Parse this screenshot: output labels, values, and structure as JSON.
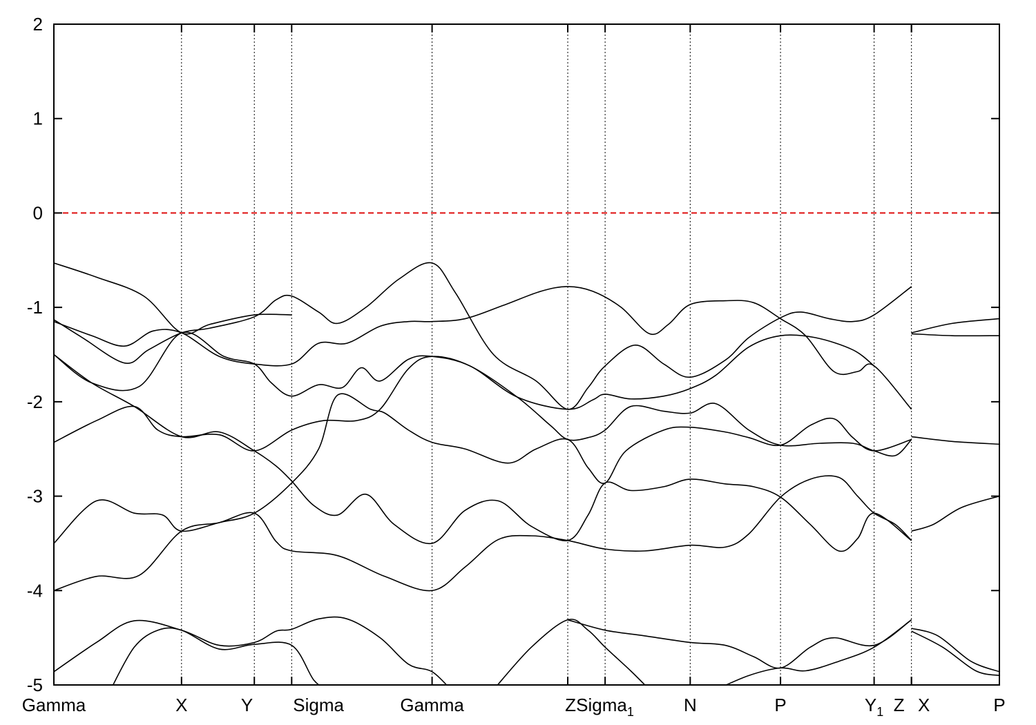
{
  "chart_data": {
    "type": "line",
    "title": "",
    "xlabel": "",
    "ylabel": "",
    "ylim": [
      -5,
      2
    ],
    "yticks": [
      2,
      1,
      0,
      -1,
      -2,
      -3,
      -4,
      -5
    ],
    "ytick_labels": [
      "2",
      "1",
      "0",
      "-1",
      "-2",
      "-3",
      "-4",
      "-5"
    ],
    "x_range": [
      0,
      20
    ],
    "high_symmetry_points": [
      {
        "x": 0.0,
        "label": "Gamma",
        "sub": ""
      },
      {
        "x": 2.7,
        "label": "X",
        "sub": ""
      },
      {
        "x": 4.24,
        "label": "Y",
        "sub": ""
      },
      {
        "x": 5.03,
        "label": "Sigma",
        "sub": ""
      },
      {
        "x": 8.0,
        "label": "Gamma",
        "sub": ""
      },
      {
        "x": 10.87,
        "label": "Z",
        "sub": ""
      },
      {
        "x": 11.66,
        "label": "Sigma",
        "sub": "1"
      },
      {
        "x": 13.46,
        "label": "N",
        "sub": ""
      },
      {
        "x": 15.37,
        "label": "P",
        "sub": ""
      },
      {
        "x": 17.35,
        "label": "Y",
        "sub": "1"
      },
      {
        "x": 18.14,
        "label": "Z",
        "sub": ""
      },
      {
        "x": 18.14,
        "label": "X",
        "sub": ""
      },
      {
        "x": 20.0,
        "label": "P",
        "sub": ""
      }
    ],
    "fermi_level": {
      "y": 0,
      "color": "#dd0000",
      "style": "dashed"
    },
    "grid": "vertical dotted at high-symmetry points",
    "line_color": "#000000",
    "series": [
      {
        "values": [
          [
            0,
            -0.53
          ],
          [
            0.9,
            -0.68
          ],
          [
            1.9,
            -0.88
          ],
          [
            2.7,
            -1.27
          ],
          [
            3.3,
            -1.18
          ],
          [
            4.24,
            -1.08
          ],
          [
            5.03,
            -1.08
          ]
        ]
      },
      {
        "values": [
          [
            0,
            -1.13
          ],
          [
            0.6,
            -1.32
          ],
          [
            1.5,
            -1.59
          ],
          [
            2.0,
            -1.45
          ],
          [
            2.7,
            -1.27
          ],
          [
            3.3,
            -1.22
          ],
          [
            4.24,
            -1.1
          ],
          [
            4.7,
            -0.92
          ],
          [
            5.03,
            -0.88
          ],
          [
            5.6,
            -1.05
          ],
          [
            6.0,
            -1.17
          ],
          [
            6.6,
            -1.0
          ],
          [
            7.3,
            -0.7
          ],
          [
            8.0,
            -0.53
          ],
          [
            8.5,
            -0.85
          ],
          [
            9.3,
            -1.5
          ],
          [
            10.2,
            -1.78
          ],
          [
            10.87,
            -2.08
          ],
          [
            11.3,
            -1.85
          ],
          [
            11.66,
            -1.62
          ],
          [
            12.3,
            -1.4
          ],
          [
            12.9,
            -1.6
          ],
          [
            13.46,
            -1.74
          ],
          [
            14.2,
            -1.56
          ],
          [
            14.7,
            -1.32
          ],
          [
            15.37,
            -1.11
          ],
          [
            15.8,
            -1.05
          ],
          [
            16.4,
            -1.12
          ],
          [
            16.9,
            -1.15
          ],
          [
            17.35,
            -1.08
          ],
          [
            18.14,
            -0.78
          ]
        ]
      },
      {
        "values": [
          [
            0,
            -1.15
          ],
          [
            0.8,
            -1.3
          ],
          [
            1.5,
            -1.41
          ],
          [
            2.1,
            -1.25
          ],
          [
            2.7,
            -1.27
          ],
          [
            3.5,
            -1.52
          ],
          [
            4.24,
            -1.6
          ],
          [
            5.03,
            -1.6
          ],
          [
            5.6,
            -1.38
          ],
          [
            6.2,
            -1.38
          ],
          [
            6.9,
            -1.2
          ],
          [
            7.5,
            -1.15
          ],
          [
            8.0,
            -1.15
          ],
          [
            8.7,
            -1.12
          ],
          [
            9.5,
            -0.98
          ],
          [
            10.3,
            -0.83
          ],
          [
            10.87,
            -0.78
          ],
          [
            11.4,
            -0.83
          ],
          [
            12.0,
            -1.0
          ],
          [
            12.6,
            -1.28
          ],
          [
            13.0,
            -1.18
          ],
          [
            13.46,
            -0.97
          ],
          [
            14.2,
            -0.93
          ],
          [
            14.8,
            -0.95
          ],
          [
            15.37,
            -1.12
          ],
          [
            15.9,
            -1.3
          ],
          [
            16.5,
            -1.68
          ],
          [
            17.0,
            -1.68
          ],
          [
            17.35,
            -1.62
          ],
          [
            18.14,
            -2.08
          ]
        ]
      },
      {
        "values": [
          [
            0,
            -1.5
          ],
          [
            0.8,
            -1.8
          ],
          [
            1.8,
            -1.84
          ],
          [
            2.7,
            -1.27
          ],
          [
            3.6,
            -1.52
          ],
          [
            4.24,
            -1.6
          ],
          [
            4.6,
            -1.8
          ],
          [
            5.03,
            -1.94
          ],
          [
            5.6,
            -1.82
          ],
          [
            6.1,
            -1.85
          ],
          [
            6.5,
            -1.64
          ],
          [
            6.9,
            -1.78
          ],
          [
            7.5,
            -1.55
          ],
          [
            8.0,
            -1.52
          ],
          [
            8.8,
            -1.62
          ],
          [
            9.8,
            -1.95
          ],
          [
            10.87,
            -2.08
          ],
          [
            11.4,
            -1.98
          ],
          [
            11.66,
            -1.92
          ],
          [
            12.2,
            -1.97
          ],
          [
            12.9,
            -1.94
          ],
          [
            13.46,
            -1.86
          ],
          [
            14.0,
            -1.72
          ],
          [
            14.7,
            -1.42
          ],
          [
            15.37,
            -1.3
          ],
          [
            16.1,
            -1.32
          ],
          [
            16.9,
            -1.45
          ],
          [
            17.35,
            -1.62
          ]
        ]
      },
      {
        "values": [
          [
            0,
            -1.5
          ],
          [
            0.8,
            -1.8
          ],
          [
            1.7,
            -2.05
          ],
          [
            2.7,
            -2.37
          ],
          [
            3.5,
            -2.32
          ],
          [
            4.24,
            -2.52
          ],
          [
            4.7,
            -2.68
          ],
          [
            5.03,
            -2.84
          ],
          [
            5.5,
            -3.1
          ],
          [
            6.0,
            -3.2
          ],
          [
            6.6,
            -2.98
          ],
          [
            7.2,
            -3.3
          ],
          [
            8.0,
            -3.5
          ],
          [
            8.7,
            -3.15
          ],
          [
            9.4,
            -3.05
          ],
          [
            10.1,
            -3.32
          ],
          [
            10.87,
            -3.47
          ],
          [
            11.3,
            -3.2
          ],
          [
            11.66,
            -2.86
          ],
          [
            12.2,
            -2.94
          ],
          [
            12.9,
            -2.9
          ],
          [
            13.46,
            -2.82
          ],
          [
            14.2,
            -2.87
          ],
          [
            14.8,
            -2.9
          ],
          [
            15.37,
            -3.01
          ],
          [
            16.0,
            -3.3
          ],
          [
            16.6,
            -3.58
          ],
          [
            17.0,
            -3.45
          ],
          [
            17.35,
            -3.18
          ],
          [
            18.14,
            -3.47
          ]
        ]
      },
      {
        "values": [
          [
            0,
            -2.43
          ],
          [
            0.9,
            -2.2
          ],
          [
            1.7,
            -2.05
          ],
          [
            2.2,
            -2.3
          ],
          [
            2.7,
            -2.37
          ],
          [
            3.5,
            -2.35
          ],
          [
            4.24,
            -2.52
          ],
          [
            5.03,
            -2.3
          ],
          [
            5.7,
            -2.2
          ],
          [
            6.4,
            -2.2
          ],
          [
            6.9,
            -2.08
          ],
          [
            7.5,
            -1.65
          ],
          [
            8.0,
            -1.52
          ],
          [
            8.8,
            -1.62
          ],
          [
            9.8,
            -1.95
          ],
          [
            10.5,
            -2.25
          ],
          [
            10.87,
            -2.4
          ],
          [
            11.3,
            -2.38
          ],
          [
            11.66,
            -2.3
          ],
          [
            12.2,
            -2.05
          ],
          [
            12.9,
            -2.1
          ],
          [
            13.46,
            -2.12
          ],
          [
            14.0,
            -2.02
          ],
          [
            14.7,
            -2.3
          ],
          [
            15.37,
            -2.46
          ],
          [
            16.2,
            -2.44
          ],
          [
            16.9,
            -2.44
          ],
          [
            17.35,
            -2.52
          ],
          [
            17.8,
            -2.57
          ],
          [
            18.14,
            -2.4
          ]
        ]
      },
      {
        "values": [
          [
            0,
            -3.5
          ],
          [
            0.9,
            -3.05
          ],
          [
            1.7,
            -3.18
          ],
          [
            2.3,
            -3.2
          ],
          [
            2.7,
            -3.37
          ],
          [
            3.5,
            -3.28
          ],
          [
            4.24,
            -3.18
          ],
          [
            4.7,
            -3.48
          ],
          [
            5.03,
            -3.58
          ],
          [
            6.0,
            -3.63
          ],
          [
            7.0,
            -3.85
          ],
          [
            8.0,
            -4.0
          ],
          [
            8.7,
            -3.75
          ],
          [
            9.4,
            -3.46
          ],
          [
            10.1,
            -3.42
          ],
          [
            10.87,
            -3.47
          ],
          [
            11.66,
            -3.56
          ],
          [
            12.5,
            -3.58
          ],
          [
            13.46,
            -3.52
          ],
          [
            14.2,
            -3.54
          ],
          [
            14.7,
            -3.4
          ],
          [
            15.37,
            -3.01
          ],
          [
            16.0,
            -2.82
          ],
          [
            16.6,
            -2.8
          ],
          [
            17.0,
            -3.0
          ],
          [
            17.35,
            -3.18
          ],
          [
            17.8,
            -3.3
          ],
          [
            18.14,
            -3.47
          ]
        ]
      },
      {
        "values": [
          [
            0,
            -4.0
          ],
          [
            0.9,
            -3.85
          ],
          [
            1.8,
            -3.84
          ],
          [
            2.7,
            -3.37
          ],
          [
            3.5,
            -3.28
          ],
          [
            4.24,
            -3.18
          ],
          [
            5.03,
            -2.86
          ],
          [
            5.6,
            -2.5
          ],
          [
            6.0,
            -1.93
          ],
          [
            6.7,
            -2.08
          ],
          [
            7.0,
            -2.12
          ],
          [
            7.5,
            -2.3
          ],
          [
            8.0,
            -2.43
          ],
          [
            8.7,
            -2.5
          ],
          [
            9.6,
            -2.65
          ],
          [
            10.2,
            -2.5
          ],
          [
            10.87,
            -2.4
          ],
          [
            11.3,
            -2.7
          ],
          [
            11.66,
            -2.86
          ],
          [
            12.1,
            -2.52
          ],
          [
            12.9,
            -2.3
          ],
          [
            13.46,
            -2.27
          ],
          [
            14.2,
            -2.32
          ],
          [
            14.7,
            -2.38
          ],
          [
            15.37,
            -2.46
          ],
          [
            16.0,
            -2.25
          ],
          [
            16.5,
            -2.18
          ],
          [
            16.9,
            -2.38
          ],
          [
            17.35,
            -2.52
          ],
          [
            18.14,
            -2.4
          ]
        ]
      },
      {
        "values": [
          [
            0,
            -4.86
          ],
          [
            0.9,
            -4.55
          ],
          [
            1.7,
            -4.32
          ],
          [
            2.7,
            -4.42
          ],
          [
            3.5,
            -4.58
          ],
          [
            4.24,
            -4.55
          ],
          [
            4.7,
            -4.43
          ],
          [
            5.03,
            -4.41
          ],
          [
            5.6,
            -4.3
          ],
          [
            6.2,
            -4.3
          ],
          [
            6.9,
            -4.5
          ],
          [
            7.5,
            -4.78
          ],
          [
            8.0,
            -4.86
          ],
          [
            8.4,
            -5.05
          ]
        ]
      },
      {
        "values": [
          [
            1.2,
            -5.05
          ],
          [
            1.7,
            -4.6
          ],
          [
            2.2,
            -4.42
          ],
          [
            2.7,
            -4.42
          ],
          [
            3.5,
            -4.62
          ],
          [
            4.24,
            -4.57
          ],
          [
            5.03,
            -4.58
          ],
          [
            5.5,
            -4.95
          ],
          [
            5.8,
            -5.05
          ]
        ]
      },
      {
        "values": [
          [
            9.3,
            -5.05
          ],
          [
            10.1,
            -4.6
          ],
          [
            10.87,
            -4.31
          ],
          [
            11.3,
            -4.42
          ],
          [
            11.66,
            -4.6
          ],
          [
            12.2,
            -4.85
          ],
          [
            12.6,
            -5.05
          ]
        ]
      },
      {
        "values": [
          [
            10.87,
            -4.31
          ],
          [
            11.66,
            -4.42
          ],
          [
            12.5,
            -4.48
          ],
          [
            13.46,
            -4.55
          ],
          [
            14.2,
            -4.58
          ],
          [
            14.8,
            -4.7
          ],
          [
            15.37,
            -4.82
          ],
          [
            16.0,
            -4.6
          ],
          [
            16.5,
            -4.5
          ],
          [
            17.35,
            -4.58
          ],
          [
            18.14,
            -4.31
          ]
        ]
      },
      {
        "values": [
          [
            14.0,
            -5.05
          ],
          [
            14.7,
            -4.9
          ],
          [
            15.37,
            -4.82
          ],
          [
            15.9,
            -4.85
          ],
          [
            16.6,
            -4.75
          ],
          [
            17.35,
            -4.6
          ],
          [
            18.14,
            -4.31
          ]
        ]
      },
      {
        "values": [
          [
            18.14,
            -1.27
          ],
          [
            19.0,
            -1.17
          ],
          [
            20.0,
            -1.12
          ]
        ]
      },
      {
        "values": [
          [
            18.14,
            -1.28
          ],
          [
            19.0,
            -1.3
          ],
          [
            20.0,
            -1.3
          ]
        ]
      },
      {
        "values": [
          [
            18.14,
            -2.37
          ],
          [
            19.0,
            -2.42
          ],
          [
            20.0,
            -2.45
          ]
        ]
      },
      {
        "values": [
          [
            18.14,
            -3.37
          ],
          [
            18.6,
            -3.3
          ],
          [
            19.2,
            -3.12
          ],
          [
            20.0,
            -3.0
          ]
        ]
      },
      {
        "values": [
          [
            18.14,
            -4.4
          ],
          [
            18.7,
            -4.48
          ],
          [
            19.4,
            -4.75
          ],
          [
            20.0,
            -4.86
          ]
        ]
      },
      {
        "values": [
          [
            18.14,
            -4.43
          ],
          [
            18.8,
            -4.6
          ],
          [
            19.5,
            -4.85
          ],
          [
            20.0,
            -4.9
          ]
        ]
      }
    ]
  }
}
